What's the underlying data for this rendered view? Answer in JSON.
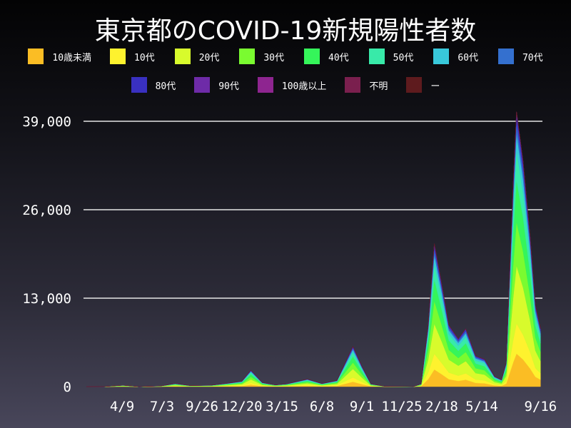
{
  "chart_data": {
    "type": "area",
    "title": "東京都のCOVID-19新規陽性者数",
    "stacked": true,
    "legend_placement": "top",
    "grid": "horizontal",
    "ylim": [
      0,
      39000
    ],
    "yticks": [
      0,
      13000,
      26000,
      39000
    ],
    "ytick_labels": [
      "0",
      "13,000",
      "26,000",
      "39,000"
    ],
    "xlim": [
      "2020-01-18",
      "2022-09-17"
    ],
    "xticks": [
      "2020-04-09",
      "2020-07-03",
      "2020-09-26",
      "2020-12-20",
      "2021-03-15",
      "2021-06-08",
      "2021-09-01",
      "2021-11-25",
      "2022-02-18",
      "2022-05-14",
      "2022-09-16"
    ],
    "xtick_labels": [
      "4/9",
      "7/3",
      "9/26",
      "12/20",
      "3/15",
      "6/8",
      "9/1",
      "11/25",
      "2/18",
      "5/14",
      "9/16"
    ],
    "x": [
      "2020-01-24",
      "2020-03-01",
      "2020-04-11",
      "2020-05-15",
      "2020-07-01",
      "2020-07-31",
      "2020-09-01",
      "2020-10-15",
      "2020-11-20",
      "2020-12-20",
      "2021-01-08",
      "2021-02-01",
      "2021-03-01",
      "2021-03-25",
      "2021-05-08",
      "2021-06-08",
      "2021-07-10",
      "2021-08-13",
      "2021-09-01",
      "2021-09-20",
      "2021-10-20",
      "2021-12-20",
      "2022-01-05",
      "2022-01-20",
      "2022-02-02",
      "2022-02-18",
      "2022-03-05",
      "2022-03-25",
      "2022-04-10",
      "2022-05-01",
      "2022-05-20",
      "2022-06-10",
      "2022-06-25",
      "2022-07-05",
      "2022-07-20",
      "2022-07-27",
      "2022-08-10",
      "2022-08-25",
      "2022-09-05",
      "2022-09-16"
    ],
    "series": [
      {
        "name": "10歳未満",
        "color": "#fbbd24",
        "values": [
          0,
          1,
          24,
          1,
          12,
          54,
          18,
          24,
          60,
          96,
          288,
          72,
          30,
          48,
          132,
          54,
          108,
          708,
          360,
          48,
          5,
          2,
          48,
          1080,
          2520,
          1800,
          1080,
          840,
          1020,
          540,
          480,
          180,
          120,
          420,
          3600,
          4848,
          3960,
          2640,
          1440,
          1020
        ]
      },
      {
        "name": "10代",
        "color": "#fef22e",
        "values": [
          0,
          1,
          22,
          1,
          11,
          50,
          17,
          22,
          55,
          88,
          264,
          66,
          28,
          44,
          121,
          50,
          99,
          649,
          330,
          44,
          4,
          2,
          44,
          990,
          2310,
          1650,
          990,
          770,
          935,
          495,
          440,
          165,
          110,
          385,
          3300,
          4444,
          3630,
          2420,
          1320,
          935
        ]
      },
      {
        "name": "20代",
        "color": "#d8fb2c",
        "values": [
          0,
          2,
          42,
          2,
          21,
          95,
          32,
          42,
          105,
          168,
          504,
          126,
          53,
          84,
          231,
          95,
          189,
          1239,
          630,
          84,
          8,
          4,
          84,
          1890,
          4410,
          3150,
          1890,
          1470,
          1785,
          945,
          840,
          315,
          210,
          735,
          6300,
          8484,
          6930,
          4620,
          2520,
          1785
        ]
      },
      {
        "name": "30代",
        "color": "#7afb30",
        "values": [
          0,
          2,
          32,
          2,
          16,
          72,
          24,
          32,
          80,
          128,
          384,
          96,
          40,
          64,
          176,
          72,
          144,
          944,
          480,
          64,
          6,
          3,
          64,
          1440,
          3360,
          2400,
          1440,
          1120,
          1360,
          720,
          640,
          240,
          160,
          560,
          4800,
          6464,
          5280,
          3520,
          1920,
          1360
        ]
      },
      {
        "name": "40代",
        "color": "#35f55a",
        "values": [
          0,
          1,
          30,
          1,
          15,
          68,
          23,
          30,
          75,
          120,
          360,
          90,
          38,
          60,
          165,
          68,
          135,
          885,
          450,
          60,
          6,
          3,
          60,
          1350,
          3150,
          2250,
          1350,
          1050,
          1275,
          675,
          600,
          225,
          150,
          525,
          4500,
          6060,
          4950,
          3300,
          1800,
          1275
        ]
      },
      {
        "name": "50代",
        "color": "#38eaa9",
        "values": [
          0,
          1,
          22,
          1,
          11,
          50,
          17,
          22,
          55,
          88,
          264,
          66,
          28,
          44,
          121,
          50,
          99,
          649,
          330,
          44,
          4,
          2,
          44,
          990,
          2310,
          1650,
          990,
          770,
          935,
          495,
          440,
          165,
          110,
          385,
          3300,
          4444,
          3630,
          2420,
          1320,
          935
        ]
      },
      {
        "name": "60代",
        "color": "#38c8da",
        "values": [
          0,
          1,
          12,
          1,
          6,
          27,
          9,
          12,
          30,
          48,
          144,
          36,
          15,
          24,
          66,
          27,
          54,
          354,
          180,
          24,
          2,
          1,
          24,
          540,
          1260,
          900,
          540,
          420,
          510,
          270,
          240,
          90,
          60,
          210,
          1800,
          2424,
          1980,
          1320,
          720,
          510
        ]
      },
      {
        "name": "70代",
        "color": "#3470cf",
        "values": [
          0,
          1,
          8,
          1,
          4,
          18,
          6,
          8,
          20,
          32,
          96,
          24,
          10,
          16,
          44,
          18,
          36,
          236,
          120,
          16,
          2,
          1,
          16,
          360,
          840,
          600,
          360,
          280,
          340,
          180,
          160,
          60,
          40,
          140,
          1200,
          1616,
          1320,
          880,
          480,
          340
        ]
      },
      {
        "name": "80代",
        "color": "#3930c0",
        "values": [
          0,
          1,
          6,
          0,
          3,
          14,
          5,
          6,
          15,
          24,
          72,
          18,
          8,
          12,
          33,
          14,
          27,
          177,
          90,
          12,
          1,
          1,
          12,
          270,
          630,
          450,
          270,
          210,
          255,
          135,
          120,
          45,
          30,
          105,
          900,
          1212,
          990,
          660,
          360,
          255
        ]
      },
      {
        "name": "90代",
        "color": "#6e2ba8",
        "values": [
          0,
          0,
          2,
          0,
          1,
          5,
          2,
          2,
          5,
          8,
          24,
          6,
          3,
          4,
          11,
          5,
          9,
          59,
          30,
          4,
          0,
          0,
          4,
          90,
          210,
          150,
          90,
          70,
          85,
          45,
          40,
          15,
          10,
          35,
          300,
          404,
          330,
          220,
          120,
          85
        ]
      },
      {
        "name": "100歳以上",
        "color": "#8e2590",
        "values": [
          0,
          0,
          0,
          0,
          0,
          0,
          0,
          0,
          0,
          0,
          0,
          0,
          0,
          0,
          0,
          0,
          0,
          0,
          0,
          0,
          0,
          0,
          0,
          0,
          0,
          0,
          0,
          0,
          0,
          0,
          0,
          0,
          0,
          0,
          0,
          0,
          0,
          0,
          0,
          0
        ]
      },
      {
        "name": "不明",
        "color": "#7a1f4e",
        "values": [
          0,
          0,
          0,
          0,
          0,
          0,
          0,
          0,
          0,
          0,
          0,
          0,
          0,
          0,
          0,
          0,
          0,
          0,
          0,
          0,
          0,
          0,
          0,
          0,
          0,
          0,
          0,
          0,
          0,
          0,
          0,
          0,
          0,
          0,
          0,
          0,
          0,
          0,
          0,
          0
        ]
      },
      {
        "name": "ー",
        "color": "#5e1b1e",
        "values": [
          0,
          0,
          0,
          0,
          0,
          0,
          0,
          0,
          0,
          0,
          0,
          0,
          0,
          0,
          0,
          0,
          0,
          0,
          0,
          0,
          0,
          0,
          0,
          0,
          0,
          0,
          0,
          0,
          0,
          0,
          0,
          0,
          0,
          0,
          0,
          0,
          0,
          0,
          0,
          0
        ]
      }
    ]
  }
}
